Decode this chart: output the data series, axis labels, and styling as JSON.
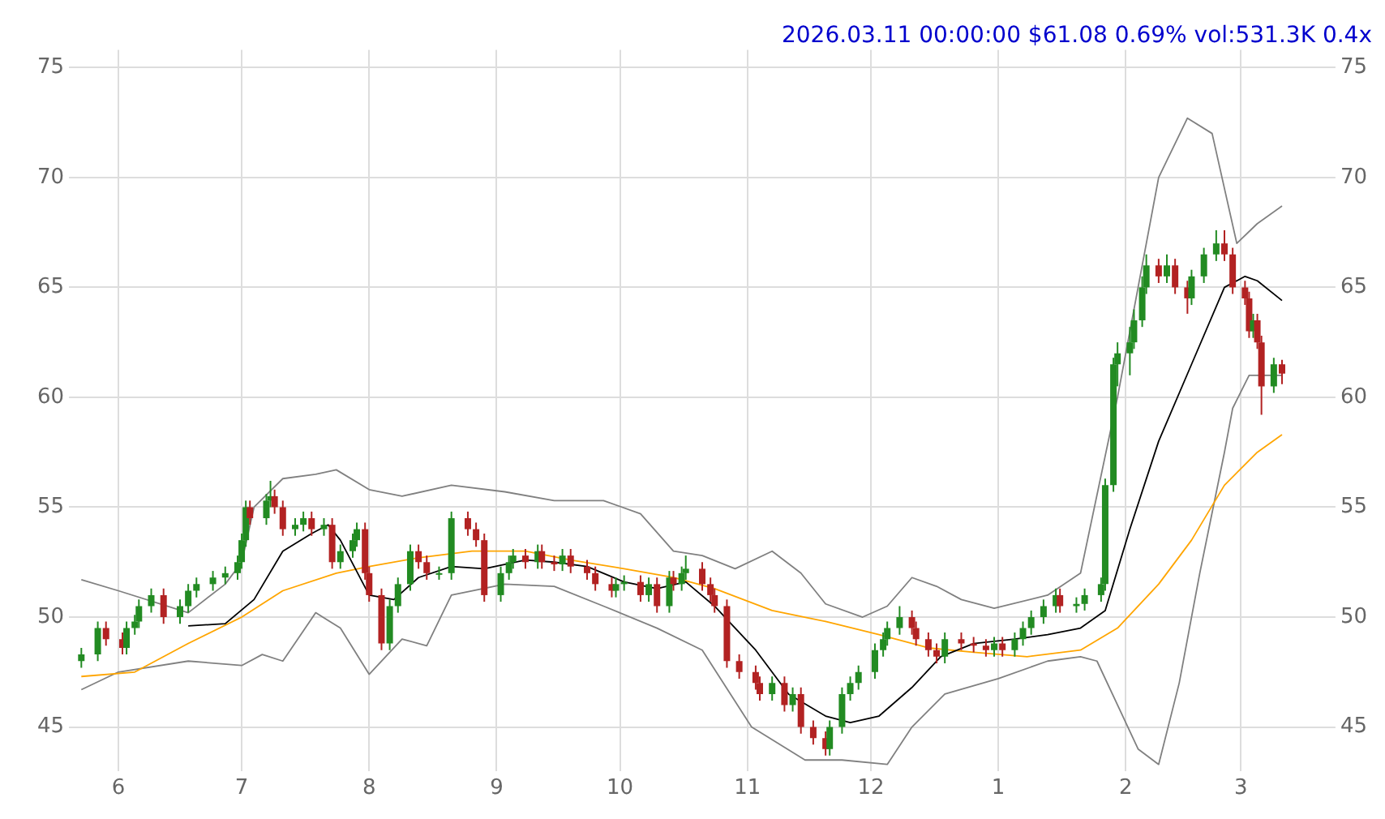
{
  "chart_data": {
    "type": "candlestick",
    "title": "2026.03.11 00:00:00 $61.08 0.69% vol:531.3K 0.4x",
    "x": [
      "2025-05-23",
      "2025-05-27",
      "2025-05-29",
      "2025-06-02",
      "2025-06-03",
      "2025-06-05",
      "2025-06-06",
      "2025-06-09",
      "2025-06-12",
      "2025-06-16",
      "2025-06-18",
      "2025-06-20",
      "2025-06-24",
      "2025-06-27",
      "2025-06-30",
      "2025-07-01",
      "2025-07-02",
      "2025-07-03",
      "2025-07-07",
      "2025-07-08",
      "2025-07-09",
      "2025-07-11",
      "2025-07-14",
      "2025-07-16",
      "2025-07-18",
      "2025-07-21",
      "2025-07-23",
      "2025-07-25",
      "2025-07-28",
      "2025-07-29",
      "2025-07-31",
      "2025-08-01",
      "2025-08-04",
      "2025-08-06",
      "2025-08-08",
      "2025-08-11",
      "2025-08-13",
      "2025-08-15",
      "2025-08-18",
      "2025-08-21",
      "2025-08-25",
      "2025-08-27",
      "2025-08-29",
      "2025-09-02",
      "2025-09-04",
      "2025-09-05",
      "2025-09-08",
      "2025-09-11",
      "2025-09-12",
      "2025-09-15",
      "2025-09-17",
      "2025-09-19",
      "2025-09-23",
      "2025-09-25",
      "2025-09-29",
      "2025-09-30",
      "2025-10-02",
      "2025-10-06",
      "2025-10-08",
      "2025-10-10",
      "2025-10-13",
      "2025-10-14",
      "2025-10-16",
      "2025-10-17",
      "2025-10-21",
      "2025-10-23",
      "2025-10-24",
      "2025-10-27",
      "2025-10-30",
      "2025-11-03",
      "2025-11-04",
      "2025-11-07",
      "2025-11-10",
      "2025-11-12",
      "2025-11-14",
      "2025-11-17",
      "2025-11-20",
      "2025-11-21",
      "2025-11-24",
      "2025-11-26",
      "2025-11-28",
      "2025-12-02",
      "2025-12-04",
      "2025-12-05",
      "2025-12-08",
      "2025-12-11",
      "2025-12-12",
      "2025-12-15",
      "2025-12-17",
      "2025-12-19",
      "2025-12-23",
      "2025-12-26",
      "2025-12-29",
      "2025-12-31",
      "2026-01-02",
      "2026-01-05",
      "2026-01-07",
      "2026-01-09",
      "2026-01-12",
      "2026-01-15",
      "2026-01-16",
      "2026-01-20",
      "2026-01-22",
      "2026-01-26",
      "2026-01-27",
      "2026-01-29",
      "2026-01-30",
      "2026-02-02",
      "2026-02-03",
      "2026-02-05",
      "2026-02-06",
      "2026-02-09",
      "2026-02-11",
      "2026-02-13",
      "2026-02-16",
      "2026-02-17",
      "2026-02-20",
      "2026-02-23",
      "2026-02-25",
      "2026-02-27",
      "2026-03-02",
      "2026-03-03",
      "2026-03-04",
      "2026-03-05",
      "2026-03-06",
      "2026-03-09",
      "2026-03-11"
    ],
    "ohlc": [
      [
        48.0,
        48.6,
        47.7,
        48.3
      ],
      [
        48.3,
        49.8,
        48.0,
        49.5
      ],
      [
        49.5,
        49.8,
        48.7,
        49.0
      ],
      [
        49.0,
        49.3,
        48.3,
        48.6
      ],
      [
        48.6,
        49.8,
        48.3,
        49.5
      ],
      [
        49.5,
        50.1,
        49.2,
        49.8
      ],
      [
        49.8,
        50.8,
        49.5,
        50.5
      ],
      [
        50.5,
        51.3,
        50.2,
        51.0
      ],
      [
        51.0,
        51.3,
        49.7,
        50.0
      ],
      [
        50.0,
        50.8,
        49.7,
        50.5
      ],
      [
        50.5,
        51.5,
        50.2,
        51.2
      ],
      [
        51.2,
        51.8,
        50.9,
        51.5
      ],
      [
        51.5,
        52.1,
        51.2,
        51.8
      ],
      [
        51.8,
        52.3,
        51.5,
        52.0
      ],
      [
        52.0,
        52.8,
        51.7,
        52.5
      ],
      [
        52.5,
        53.8,
        52.2,
        53.5
      ],
      [
        53.5,
        55.3,
        53.2,
        55.0
      ],
      [
        55.0,
        55.3,
        54.2,
        54.5
      ],
      [
        54.5,
        55.6,
        54.2,
        55.3
      ],
      [
        55.3,
        56.2,
        55.0,
        55.5
      ],
      [
        55.5,
        55.8,
        54.7,
        55.0
      ],
      [
        55.0,
        55.3,
        53.7,
        54.0
      ],
      [
        54.0,
        54.5,
        53.7,
        54.2
      ],
      [
        54.2,
        54.8,
        53.9,
        54.5
      ],
      [
        54.5,
        54.8,
        53.7,
        54.0
      ],
      [
        54.0,
        54.5,
        53.7,
        54.2
      ],
      [
        54.2,
        54.5,
        52.2,
        52.5
      ],
      [
        52.5,
        53.3,
        52.2,
        53.0
      ],
      [
        53.0,
        53.8,
        52.7,
        53.5
      ],
      [
        53.5,
        54.3,
        53.2,
        54.0
      ],
      [
        54.0,
        54.3,
        51.7,
        52.0
      ],
      [
        52.0,
        52.3,
        50.7,
        51.0
      ],
      [
        51.0,
        51.3,
        48.5,
        48.8
      ],
      [
        48.8,
        50.8,
        48.5,
        50.5
      ],
      [
        50.5,
        51.8,
        50.2,
        51.5
      ],
      [
        51.5,
        53.3,
        51.2,
        53.0
      ],
      [
        53.0,
        53.3,
        52.2,
        52.5
      ],
      [
        52.5,
        52.8,
        51.7,
        52.0
      ],
      [
        52.0,
        52.3,
        51.7,
        52.0
      ],
      [
        52.0,
        54.8,
        51.7,
        54.5
      ],
      [
        54.5,
        54.8,
        53.7,
        54.0
      ],
      [
        54.0,
        54.3,
        53.2,
        53.5
      ],
      [
        53.5,
        53.8,
        50.7,
        51.0
      ],
      [
        51.0,
        52.3,
        50.7,
        52.0
      ],
      [
        52.0,
        52.8,
        51.7,
        52.5
      ],
      [
        52.5,
        53.1,
        52.2,
        52.8
      ],
      [
        52.8,
        53.1,
        52.2,
        52.5
      ],
      [
        52.5,
        53.3,
        52.2,
        53.0
      ],
      [
        53.0,
        53.3,
        52.2,
        52.5
      ],
      [
        52.5,
        52.8,
        52.1,
        52.4
      ],
      [
        52.4,
        53.1,
        52.1,
        52.8
      ],
      [
        52.8,
        53.1,
        52.0,
        52.3
      ],
      [
        52.3,
        52.6,
        51.7,
        52.0
      ],
      [
        52.0,
        52.3,
        51.2,
        51.5
      ],
      [
        51.5,
        51.8,
        50.9,
        51.2
      ],
      [
        51.2,
        51.8,
        50.9,
        51.5
      ],
      [
        51.5,
        51.9,
        51.2,
        51.6
      ],
      [
        51.6,
        51.9,
        50.7,
        51.0
      ],
      [
        51.0,
        51.8,
        50.7,
        51.5
      ],
      [
        51.5,
        51.8,
        50.2,
        50.5
      ],
      [
        50.5,
        52.1,
        50.2,
        51.8
      ],
      [
        51.8,
        52.1,
        51.2,
        51.5
      ],
      [
        51.5,
        52.3,
        51.2,
        52.0
      ],
      [
        52.0,
        52.8,
        51.7,
        52.2
      ],
      [
        52.2,
        52.5,
        51.2,
        51.5
      ],
      [
        51.5,
        51.8,
        50.7,
        51.0
      ],
      [
        51.0,
        51.3,
        50.2,
        50.5
      ],
      [
        50.5,
        50.8,
        47.7,
        48.0
      ],
      [
        48.0,
        48.3,
        47.2,
        47.5
      ],
      [
        47.5,
        47.8,
        46.7,
        47.0
      ],
      [
        47.0,
        47.3,
        46.2,
        46.5
      ],
      [
        46.5,
        47.3,
        46.2,
        47.0
      ],
      [
        47.0,
        47.3,
        45.7,
        46.0
      ],
      [
        46.0,
        46.8,
        45.7,
        46.5
      ],
      [
        46.5,
        46.8,
        44.7,
        45.0
      ],
      [
        45.0,
        45.3,
        44.2,
        44.5
      ],
      [
        44.5,
        44.8,
        43.7,
        44.0
      ],
      [
        44.0,
        45.3,
        43.7,
        45.0
      ],
      [
        45.0,
        46.8,
        44.7,
        46.5
      ],
      [
        46.5,
        47.3,
        46.2,
        47.0
      ],
      [
        47.0,
        47.8,
        46.7,
        47.5
      ],
      [
        47.5,
        48.8,
        47.2,
        48.5
      ],
      [
        48.5,
        49.3,
        48.2,
        49.0
      ],
      [
        49.0,
        49.8,
        48.7,
        49.5
      ],
      [
        49.5,
        50.5,
        49.2,
        50.0
      ],
      [
        50.0,
        50.3,
        49.2,
        49.5
      ],
      [
        49.5,
        49.8,
        48.7,
        49.0
      ],
      [
        49.0,
        49.3,
        48.2,
        48.5
      ],
      [
        48.5,
        48.8,
        47.9,
        48.2
      ],
      [
        48.2,
        49.3,
        47.9,
        49.0
      ],
      [
        49.0,
        49.3,
        48.5,
        48.8
      ],
      [
        48.8,
        49.1,
        48.4,
        48.7
      ],
      [
        48.7,
        49.0,
        48.2,
        48.5
      ],
      [
        48.5,
        49.1,
        48.2,
        48.8
      ],
      [
        48.8,
        49.1,
        48.2,
        48.5
      ],
      [
        48.5,
        49.3,
        48.2,
        49.0
      ],
      [
        49.0,
        49.8,
        48.7,
        49.5
      ],
      [
        49.5,
        50.3,
        49.2,
        50.0
      ],
      [
        50.0,
        50.8,
        49.7,
        50.5
      ],
      [
        50.5,
        51.3,
        50.2,
        51.0
      ],
      [
        51.0,
        51.3,
        50.2,
        50.5
      ],
      [
        50.5,
        50.9,
        50.2,
        50.6
      ],
      [
        50.6,
        51.3,
        50.3,
        51.0
      ],
      [
        51.0,
        51.8,
        50.7,
        51.5
      ],
      [
        51.5,
        56.3,
        51.2,
        56.0
      ],
      [
        56.0,
        61.8,
        55.7,
        61.5
      ],
      [
        61.5,
        62.5,
        60.5,
        62.0
      ],
      [
        62.0,
        63.2,
        61.0,
        62.5
      ],
      [
        62.5,
        64.0,
        62.2,
        63.5
      ],
      [
        63.5,
        65.5,
        63.2,
        65.0
      ],
      [
        65.0,
        66.5,
        64.7,
        66.0
      ],
      [
        66.0,
        66.3,
        65.2,
        65.5
      ],
      [
        65.5,
        66.5,
        65.2,
        66.0
      ],
      [
        66.0,
        66.3,
        64.7,
        65.0
      ],
      [
        65.0,
        65.3,
        63.8,
        64.5
      ],
      [
        64.5,
        65.8,
        64.2,
        65.5
      ],
      [
        65.5,
        66.8,
        65.2,
        66.5
      ],
      [
        66.5,
        67.6,
        66.2,
        67.0
      ],
      [
        67.0,
        67.6,
        66.2,
        66.5
      ],
      [
        66.5,
        66.8,
        64.7,
        65.0
      ],
      [
        65.0,
        65.3,
        64.2,
        64.5
      ],
      [
        64.5,
        64.8,
        62.7,
        63.0
      ],
      [
        63.0,
        63.8,
        62.7,
        63.5
      ],
      [
        63.5,
        63.8,
        62.2,
        62.5
      ],
      [
        62.5,
        62.8,
        59.2,
        60.5
      ],
      [
        60.5,
        61.8,
        60.2,
        61.5
      ],
      [
        61.5,
        61.7,
        60.6,
        61.08
      ]
    ],
    "colors": [
      "#228b22",
      "#228b22",
      "#b22222",
      "#b22222",
      "#228b22",
      "#228b22",
      "#228b22",
      "#228b22",
      "#b22222",
      "#228b22",
      "#228b22",
      "#228b22",
      "#228b22",
      "#228b22",
      "#228b22",
      "#228b22",
      "#228b22",
      "#b22222",
      "#228b22",
      "#228b22",
      "#b22222",
      "#b22222",
      "#228b22",
      "#228b22",
      "#b22222",
      "#228b22",
      "#b22222",
      "#228b22",
      "#228b22",
      "#228b22",
      "#b22222",
      "#b22222",
      "#b22222",
      "#228b22",
      "#228b22",
      "#228b22",
      "#b22222",
      "#b22222",
      "#228b22",
      "#228b22",
      "#b22222",
      "#b22222",
      "#b22222",
      "#228b22",
      "#228b22",
      "#228b22",
      "#b22222",
      "#228b22",
      "#b22222",
      "#b22222",
      "#228b22",
      "#b22222",
      "#b22222",
      "#b22222",
      "#b22222",
      "#228b22",
      "#228b22",
      "#b22222",
      "#228b22",
      "#b22222",
      "#228b22",
      "#b22222",
      "#228b22",
      "#228b22",
      "#b22222",
      "#b22222",
      "#b22222",
      "#b22222",
      "#b22222",
      "#b22222",
      "#b22222",
      "#228b22",
      "#b22222",
      "#228b22",
      "#b22222",
      "#b22222",
      "#b22222",
      "#228b22",
      "#228b22",
      "#228b22",
      "#228b22",
      "#228b22",
      "#228b22",
      "#228b22",
      "#228b22",
      "#b22222",
      "#b22222",
      "#b22222",
      "#b22222",
      "#228b22",
      "#b22222",
      "#b22222",
      "#b22222",
      "#228b22",
      "#b22222",
      "#228b22",
      "#228b22",
      "#228b22",
      "#228b22",
      "#228b22",
      "#b22222",
      "#228b22",
      "#228b22",
      "#228b22",
      "#228b22",
      "#228b22",
      "#228b22",
      "#228b22",
      "#228b22",
      "#228b22",
      "#228b22",
      "#b22222",
      "#228b22",
      "#b22222",
      "#b22222",
      "#228b22",
      "#228b22",
      "#228b22",
      "#b22222",
      "#b22222",
      "#b22222",
      "#b22222",
      "#228b22",
      "#b22222",
      "#b22222",
      "#228b22",
      "#b22222"
    ],
    "series": [
      {
        "type": "line",
        "color": "#000000",
        "x": [
          "2025-06-18",
          "2025-06-27",
          "2025-07-04",
          "2025-07-11",
          "2025-07-18",
          "2025-07-22",
          "2025-07-25",
          "2025-08-01",
          "2025-08-07",
          "2025-08-13",
          "2025-08-21",
          "2025-08-29",
          "2025-09-08",
          "2025-09-15",
          "2025-09-23",
          "2025-10-02",
          "2025-10-10",
          "2025-10-17",
          "2025-10-24",
          "2025-11-03",
          "2025-11-11",
          "2025-11-20",
          "2025-11-26",
          "2025-12-03",
          "2025-12-11",
          "2025-12-18",
          "2025-12-26",
          "2026-01-05",
          "2026-01-13",
          "2026-01-21",
          "2026-01-27",
          "2026-02-02",
          "2026-02-09",
          "2026-02-17",
          "2026-02-25",
          "2026-03-02",
          "2026-03-05",
          "2026-03-11"
        ],
        "values": [
          49.6,
          49.7,
          50.8,
          53.0,
          53.8,
          54.2,
          53.5,
          51.0,
          50.8,
          51.8,
          52.3,
          52.2,
          52.6,
          52.5,
          52.3,
          51.6,
          51.3,
          51.6,
          50.5,
          48.5,
          46.5,
          45.5,
          45.2,
          45.5,
          46.8,
          48.2,
          48.8,
          49.0,
          49.2,
          49.5,
          50.3,
          54.0,
          58.0,
          61.5,
          65.0,
          65.5,
          65.3,
          64.4
        ]
      },
      {
        "type": "line",
        "color": "#ffa500",
        "x": [
          "2025-05-23",
          "2025-06-05",
          "2025-06-18",
          "2025-07-01",
          "2025-07-11",
          "2025-07-24",
          "2025-08-01",
          "2025-08-13",
          "2025-08-26",
          "2025-09-08",
          "2025-09-19",
          "2025-10-02",
          "2025-10-14",
          "2025-10-24",
          "2025-11-07",
          "2025-11-20",
          "2025-12-03",
          "2025-12-15",
          "2025-12-26",
          "2026-01-08",
          "2026-01-21",
          "2026-01-30",
          "2026-02-09",
          "2026-02-17",
          "2026-02-25",
          "2026-03-05",
          "2026-03-11"
        ],
        "values": [
          47.3,
          47.5,
          48.8,
          50.0,
          51.2,
          52.0,
          52.3,
          52.7,
          53.0,
          53.0,
          52.6,
          52.2,
          51.8,
          51.3,
          50.3,
          49.8,
          49.2,
          48.6,
          48.4,
          48.2,
          48.5,
          49.5,
          51.5,
          53.5,
          56.0,
          57.5,
          58.3
        ]
      },
      {
        "type": "line",
        "color": "#808080",
        "x": [
          "2025-05-23",
          "2025-06-01",
          "2025-06-18",
          "2025-06-27",
          "2025-07-01",
          "2025-07-04",
          "2025-07-11",
          "2025-07-19",
          "2025-07-24",
          "2025-08-01",
          "2025-08-09",
          "2025-08-21",
          "2025-09-03",
          "2025-09-15",
          "2025-09-27",
          "2025-10-06",
          "2025-10-14",
          "2025-10-21",
          "2025-10-29",
          "2025-11-07",
          "2025-11-14",
          "2025-11-20",
          "2025-11-29",
          "2025-12-05",
          "2025-12-11",
          "2025-12-17",
          "2025-12-23",
          "2025-12-31",
          "2026-01-13",
          "2026-01-21",
          "2026-01-30",
          "2026-02-09",
          "2026-02-16",
          "2026-02-22",
          "2026-02-28",
          "2026-03-05",
          "2026-03-11"
        ],
        "values": [
          51.7,
          51.2,
          50.2,
          51.5,
          52.5,
          55.0,
          56.3,
          56.5,
          56.7,
          55.8,
          55.5,
          56.0,
          55.7,
          55.3,
          55.3,
          54.7,
          53.0,
          52.8,
          52.2,
          53.0,
          52.0,
          50.6,
          50.0,
          50.5,
          51.8,
          51.4,
          50.8,
          50.4,
          51.0,
          52.0,
          60.0,
          70.0,
          72.7,
          72.0,
          67.0,
          67.9,
          68.7
        ]
      },
      {
        "type": "line",
        "color": "#808080",
        "x": [
          "2025-05-23",
          "2025-06-01",
          "2025-06-18",
          "2025-07-01",
          "2025-07-06",
          "2025-07-11",
          "2025-07-19",
          "2025-07-25",
          "2025-08-01",
          "2025-08-09",
          "2025-08-15",
          "2025-08-21",
          "2025-09-03",
          "2025-09-15",
          "2025-09-27",
          "2025-10-10",
          "2025-10-21",
          "2025-11-02",
          "2025-11-15",
          "2025-11-24",
          "2025-12-05",
          "2025-12-11",
          "2025-12-19",
          "2026-01-01",
          "2026-01-13",
          "2026-01-21",
          "2026-01-25",
          "2026-01-30",
          "2026-02-04",
          "2026-02-09",
          "2026-02-14",
          "2026-02-19",
          "2026-02-25",
          "2026-02-27",
          "2026-03-03",
          "2026-03-11"
        ],
        "values": [
          46.7,
          47.5,
          48.0,
          47.8,
          48.3,
          48.0,
          50.2,
          49.5,
          47.4,
          49.0,
          48.7,
          51.0,
          51.5,
          51.4,
          50.5,
          49.5,
          48.5,
          45.0,
          43.5,
          43.5,
          43.3,
          45.0,
          46.5,
          47.2,
          48.0,
          48.2,
          48.0,
          46.0,
          44.0,
          43.3,
          47.0,
          52.0,
          57.5,
          59.5,
          61.0,
          61.0
        ]
      }
    ],
    "xlim": [
      "2025-05-20",
      "2026-03-24"
    ],
    "xticks": [
      {
        "value": "2025-06-01",
        "label": "6"
      },
      {
        "value": "2025-07-01",
        "label": "7"
      },
      {
        "value": "2025-08-01",
        "label": "8"
      },
      {
        "value": "2025-09-01",
        "label": "9"
      },
      {
        "value": "2025-10-01",
        "label": "10"
      },
      {
        "value": "2025-11-01",
        "label": "11"
      },
      {
        "value": "2025-12-01",
        "label": "12"
      },
      {
        "value": "2026-01-01",
        "label": "1"
      },
      {
        "value": "2026-02-01",
        "label": "2"
      },
      {
        "value": "2026-03-01",
        "label": "3"
      }
    ],
    "ylim": [
      43,
      75.8
    ],
    "yticks": [
      45,
      50,
      55,
      60,
      65,
      70,
      75
    ],
    "y2lim": [
      43,
      75.8
    ],
    "y2ticks": [
      45,
      50,
      55,
      60,
      65,
      70,
      75
    ],
    "grid": true,
    "legend": false
  }
}
